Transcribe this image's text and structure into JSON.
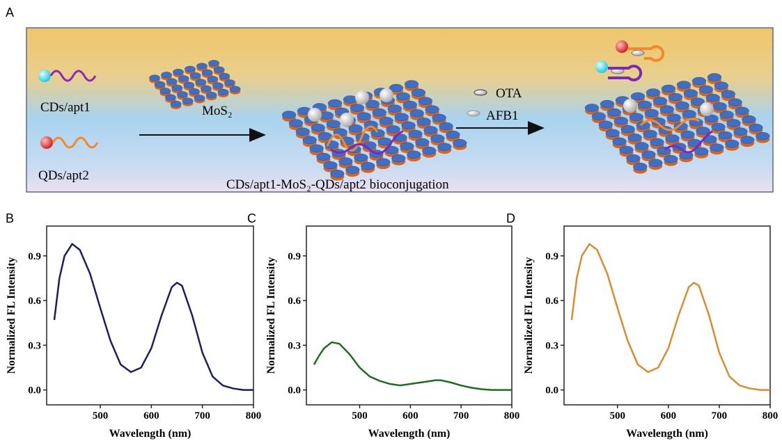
{
  "diagram": {
    "panel_label": "A",
    "left_labels": [
      "CDs/apt1",
      "QDs/apt2"
    ],
    "arrow1_label": "MoS₂",
    "targets": [
      "OTA",
      "AFB1"
    ],
    "caption": "CDs/apt1-MoS₂-QDs/apt2 bioconjugation"
  },
  "chart_data": [
    {
      "type": "line",
      "panel_label": "B",
      "x_label": "Wavelength (nm)",
      "y_label": "Normalized FL Intensity",
      "color": "#1c1f5e",
      "x": [
        410,
        420,
        430,
        445,
        460,
        480,
        500,
        520,
        540,
        560,
        580,
        600,
        620,
        640,
        650,
        660,
        680,
        700,
        720,
        740,
        760,
        780,
        800
      ],
      "values": [
        0.47,
        0.75,
        0.9,
        0.98,
        0.94,
        0.78,
        0.55,
        0.33,
        0.17,
        0.12,
        0.15,
        0.28,
        0.5,
        0.69,
        0.72,
        0.7,
        0.5,
        0.25,
        0.09,
        0.03,
        0.01,
        0.0,
        0.0
      ],
      "xlim": [
        395,
        800
      ],
      "ylim": [
        -0.1,
        1.1
      ],
      "xticks": [
        500,
        600,
        700,
        800
      ],
      "yticks": [
        {
          "value": 0,
          "label": "0.0"
        },
        0.3,
        0.6,
        0.9
      ]
    },
    {
      "type": "line",
      "panel_label": "C",
      "x_label": "Wavelength (nm)",
      "y_label": "Normalized FL Intensity",
      "color": "#1f6b1f",
      "x": [
        410,
        420,
        430,
        445,
        460,
        480,
        500,
        520,
        540,
        560,
        580,
        600,
        620,
        640,
        650,
        660,
        680,
        700,
        720,
        740,
        760,
        780,
        800
      ],
      "values": [
        0.17,
        0.23,
        0.28,
        0.32,
        0.31,
        0.24,
        0.15,
        0.09,
        0.06,
        0.04,
        0.03,
        0.04,
        0.05,
        0.06,
        0.065,
        0.065,
        0.05,
        0.03,
        0.015,
        0.005,
        0.0,
        0.0,
        0.0
      ],
      "xlim": [
        395,
        800
      ],
      "ylim": [
        -0.1,
        1.1
      ],
      "xticks": [
        500,
        600,
        700,
        800
      ],
      "yticks": [
        {
          "value": 0,
          "label": "0.0"
        },
        0.3,
        0.6,
        0.9
      ]
    },
    {
      "type": "line",
      "panel_label": "D",
      "x_label": "Wavelength (nm)",
      "y_label": "Normalized FL Intensity",
      "color": "#dc8c2c",
      "x": [
        410,
        420,
        430,
        445,
        460,
        480,
        500,
        520,
        540,
        560,
        580,
        600,
        620,
        640,
        650,
        660,
        680,
        700,
        720,
        740,
        760,
        780,
        800
      ],
      "values": [
        0.47,
        0.75,
        0.9,
        0.98,
        0.94,
        0.78,
        0.55,
        0.33,
        0.17,
        0.12,
        0.15,
        0.28,
        0.5,
        0.69,
        0.72,
        0.7,
        0.5,
        0.25,
        0.09,
        0.03,
        0.01,
        0.0,
        0.0
      ],
      "xlim": [
        395,
        800
      ],
      "ylim": [
        -0.1,
        1.1
      ],
      "xticks": [
        500,
        600,
        700,
        800
      ],
      "yticks": [
        {
          "value": 0,
          "label": "0.0"
        },
        0.3,
        0.6,
        0.9
      ]
    }
  ]
}
